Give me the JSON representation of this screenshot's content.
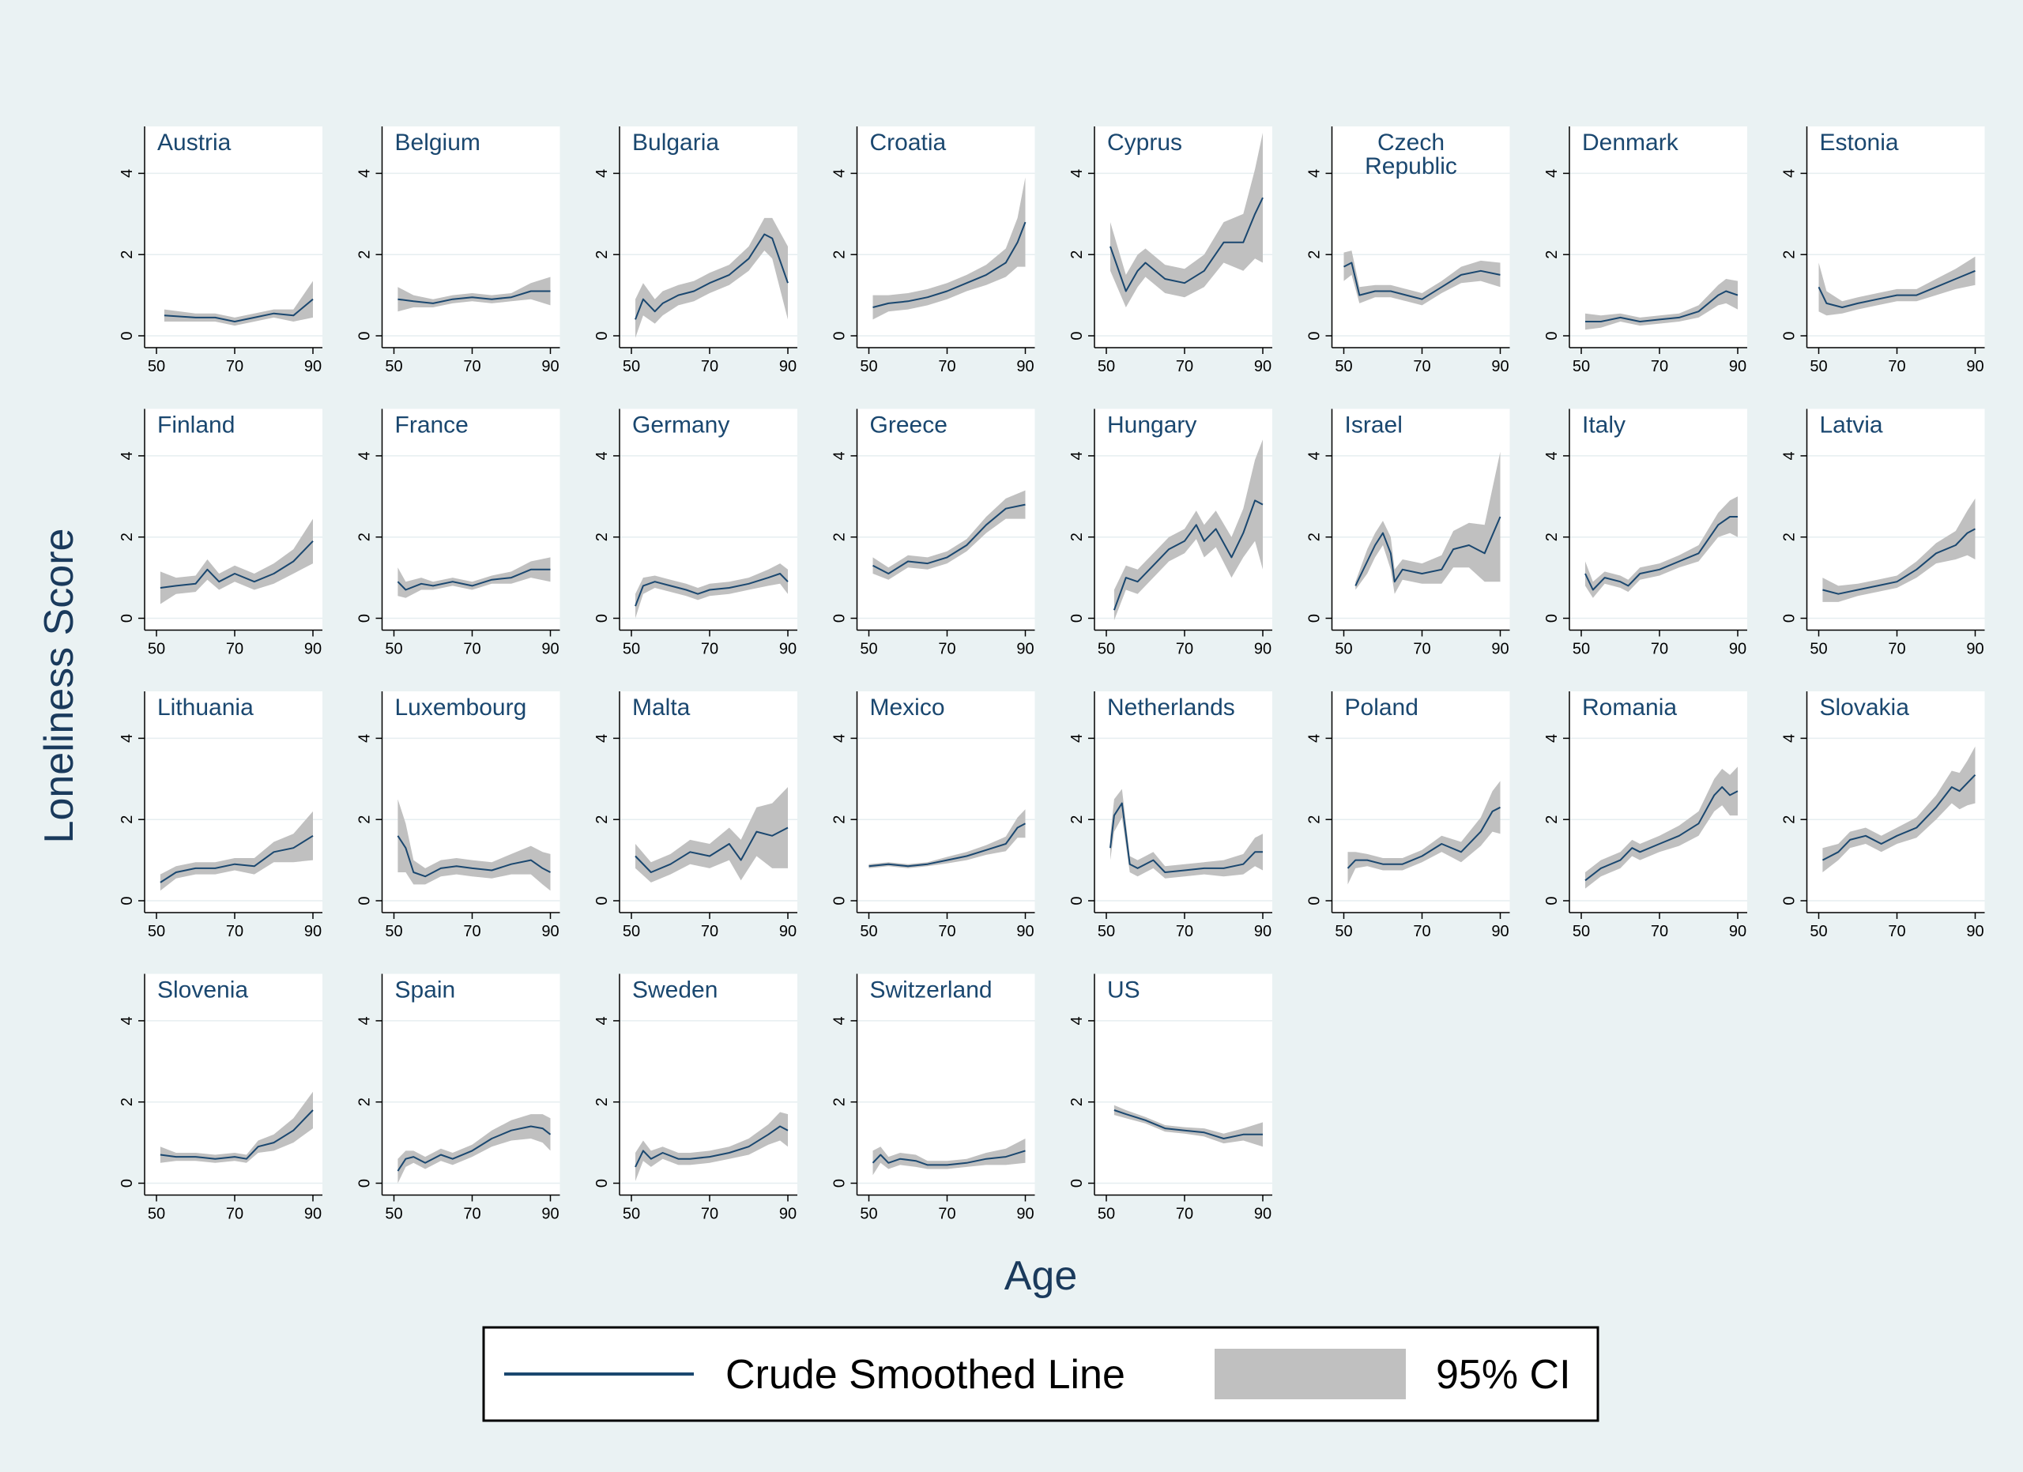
{
  "colors": {
    "background": "#eaf2f3",
    "plot_background": "#ffffff",
    "line": "#1a476f",
    "ci_band": "#c0c0c0",
    "gridline": "#e6eef0",
    "title_text": "#1a476f"
  },
  "chart_data": {
    "type": "line",
    "layout": "small multiples, 8 columns",
    "ylabel": "Loneliness Score",
    "xlabel": "Age",
    "xlim": [
      50,
      90
    ],
    "ylim": [
      0,
      5
    ],
    "xticks": [
      50,
      70,
      90
    ],
    "yticks": [
      0,
      2,
      4
    ],
    "grid": "horizontal",
    "legend": {
      "position": "bottom-center",
      "items": [
        {
          "label": "Crude Smoothed Line",
          "kind": "line"
        },
        {
          "label": "95% CI",
          "kind": "band"
        }
      ]
    },
    "panels": [
      {
        "title": [
          "Austria"
        ],
        "x": [
          52,
          60,
          65,
          70,
          75,
          80,
          85,
          90
        ],
        "y": [
          0.5,
          0.45,
          0.45,
          0.35,
          0.45,
          0.55,
          0.5,
          0.9
        ],
        "ci": [
          0.15,
          0.1,
          0.1,
          0.1,
          0.1,
          0.1,
          0.15,
          0.45
        ]
      },
      {
        "title": [
          "Belgium"
        ],
        "x": [
          51,
          55,
          60,
          65,
          70,
          75,
          80,
          85,
          90
        ],
        "y": [
          0.9,
          0.85,
          0.8,
          0.9,
          0.95,
          0.9,
          0.95,
          1.1,
          1.1
        ],
        "ci": [
          0.3,
          0.15,
          0.1,
          0.1,
          0.1,
          0.1,
          0.1,
          0.2,
          0.35
        ]
      },
      {
        "title": [
          "Bulgaria"
        ],
        "x": [
          51,
          53,
          56,
          58,
          62,
          66,
          70,
          75,
          80,
          84,
          86,
          90
        ],
        "y": [
          0.4,
          0.9,
          0.6,
          0.8,
          1.0,
          1.1,
          1.3,
          1.5,
          1.9,
          2.5,
          2.4,
          1.3
        ],
        "ci": [
          0.5,
          0.4,
          0.3,
          0.3,
          0.25,
          0.25,
          0.25,
          0.25,
          0.3,
          0.4,
          0.5,
          0.9
        ]
      },
      {
        "title": [
          "Croatia"
        ],
        "x": [
          51,
          55,
          60,
          65,
          70,
          75,
          80,
          85,
          88,
          90
        ],
        "y": [
          0.7,
          0.8,
          0.85,
          0.95,
          1.1,
          1.3,
          1.5,
          1.8,
          2.3,
          2.8
        ],
        "ci": [
          0.3,
          0.2,
          0.2,
          0.2,
          0.2,
          0.2,
          0.25,
          0.35,
          0.6,
          1.1
        ]
      },
      {
        "title": [
          "Cyprus"
        ],
        "x": [
          51,
          55,
          58,
          60,
          65,
          70,
          75,
          80,
          85,
          88,
          90
        ],
        "y": [
          2.2,
          1.1,
          1.6,
          1.8,
          1.4,
          1.3,
          1.6,
          2.3,
          2.3,
          3.0,
          3.4
        ],
        "ci": [
          0.6,
          0.4,
          0.4,
          0.35,
          0.35,
          0.35,
          0.4,
          0.5,
          0.7,
          1.1,
          1.6
        ]
      },
      {
        "title": [
          "Czech",
          "Republic"
        ],
        "x": [
          50,
          52,
          54,
          58,
          62,
          66,
          70,
          75,
          80,
          85,
          90
        ],
        "y": [
          1.7,
          1.8,
          1.0,
          1.1,
          1.1,
          1.0,
          0.9,
          1.2,
          1.5,
          1.6,
          1.5
        ],
        "ci": [
          0.35,
          0.3,
          0.2,
          0.15,
          0.15,
          0.15,
          0.15,
          0.15,
          0.2,
          0.25,
          0.3
        ]
      },
      {
        "title": [
          "Denmark"
        ],
        "x": [
          51,
          55,
          60,
          65,
          70,
          75,
          80,
          85,
          87,
          90
        ],
        "y": [
          0.35,
          0.35,
          0.45,
          0.35,
          0.4,
          0.45,
          0.6,
          1.0,
          1.1,
          1.0
        ],
        "ci": [
          0.2,
          0.15,
          0.1,
          0.1,
          0.1,
          0.1,
          0.15,
          0.25,
          0.3,
          0.35
        ]
      },
      {
        "title": [
          "Estonia"
        ],
        "x": [
          50,
          52,
          56,
          60,
          65,
          70,
          75,
          80,
          85,
          90
        ],
        "y": [
          1.2,
          0.8,
          0.7,
          0.8,
          0.9,
          1.0,
          1.0,
          1.2,
          1.4,
          1.6
        ],
        "ci": [
          0.6,
          0.3,
          0.15,
          0.15,
          0.15,
          0.15,
          0.15,
          0.2,
          0.25,
          0.35
        ]
      },
      {
        "title": [
          "Finland"
        ],
        "x": [
          51,
          55,
          60,
          63,
          66,
          70,
          75,
          80,
          85,
          90
        ],
        "y": [
          0.75,
          0.8,
          0.85,
          1.2,
          0.9,
          1.1,
          0.9,
          1.1,
          1.4,
          1.9
        ],
        "ci": [
          0.4,
          0.2,
          0.2,
          0.25,
          0.2,
          0.2,
          0.2,
          0.25,
          0.3,
          0.55
        ]
      },
      {
        "title": [
          "France"
        ],
        "x": [
          51,
          53,
          57,
          60,
          65,
          70,
          75,
          80,
          85,
          90
        ],
        "y": [
          0.9,
          0.7,
          0.85,
          0.8,
          0.9,
          0.8,
          0.95,
          1.0,
          1.2,
          1.2
        ],
        "ci": [
          0.35,
          0.2,
          0.15,
          0.1,
          0.1,
          0.1,
          0.1,
          0.15,
          0.2,
          0.3
        ]
      },
      {
        "title": [
          "Germany"
        ],
        "x": [
          51,
          53,
          56,
          60,
          64,
          67,
          70,
          75,
          80,
          85,
          88,
          90
        ],
        "y": [
          0.3,
          0.8,
          0.9,
          0.8,
          0.7,
          0.6,
          0.7,
          0.75,
          0.85,
          1.0,
          1.1,
          0.9
        ],
        "ci": [
          0.3,
          0.2,
          0.15,
          0.15,
          0.15,
          0.15,
          0.15,
          0.15,
          0.15,
          0.2,
          0.25,
          0.3
        ]
      },
      {
        "title": [
          "Greece"
        ],
        "x": [
          51,
          55,
          60,
          65,
          70,
          75,
          80,
          85,
          90
        ],
        "y": [
          1.3,
          1.1,
          1.4,
          1.35,
          1.5,
          1.8,
          2.3,
          2.7,
          2.8
        ],
        "ci": [
          0.2,
          0.15,
          0.15,
          0.15,
          0.15,
          0.15,
          0.2,
          0.25,
          0.35
        ]
      },
      {
        "title": [
          "Hungary"
        ],
        "x": [
          52,
          55,
          58,
          62,
          66,
          70,
          73,
          75,
          78,
          82,
          85,
          88,
          90
        ],
        "y": [
          0.2,
          1.0,
          0.9,
          1.3,
          1.7,
          1.9,
          2.3,
          1.9,
          2.2,
          1.5,
          2.1,
          2.9,
          2.8
        ],
        "ci": [
          0.5,
          0.3,
          0.3,
          0.3,
          0.3,
          0.3,
          0.35,
          0.4,
          0.45,
          0.5,
          0.6,
          1.0,
          1.6
        ]
      },
      {
        "title": [
          "Israel"
        ],
        "x": [
          53,
          56,
          58,
          60,
          62,
          63,
          65,
          70,
          75,
          78,
          82,
          86,
          90
        ],
        "y": [
          0.8,
          1.4,
          1.8,
          2.1,
          1.6,
          0.9,
          1.2,
          1.1,
          1.2,
          1.7,
          1.8,
          1.6,
          2.5
        ],
        "ci": [
          0.1,
          0.3,
          0.3,
          0.3,
          0.4,
          0.3,
          0.25,
          0.25,
          0.35,
          0.45,
          0.55,
          0.7,
          1.6
        ]
      },
      {
        "title": [
          "Italy"
        ],
        "x": [
          51,
          53,
          56,
          60,
          62,
          65,
          70,
          75,
          80,
          85,
          88,
          90
        ],
        "y": [
          1.1,
          0.7,
          1.0,
          0.9,
          0.8,
          1.1,
          1.2,
          1.4,
          1.6,
          2.3,
          2.5,
          2.5
        ],
        "ci": [
          0.3,
          0.2,
          0.15,
          0.15,
          0.15,
          0.15,
          0.15,
          0.15,
          0.2,
          0.3,
          0.4,
          0.5
        ]
      },
      {
        "title": [
          "Latvia"
        ],
        "x": [
          51,
          55,
          60,
          65,
          70,
          75,
          80,
          85,
          88,
          90
        ],
        "y": [
          0.7,
          0.6,
          0.7,
          0.8,
          0.9,
          1.2,
          1.6,
          1.8,
          2.1,
          2.2
        ],
        "ci": [
          0.3,
          0.2,
          0.15,
          0.15,
          0.15,
          0.2,
          0.25,
          0.35,
          0.55,
          0.75
        ]
      },
      {
        "title": [
          "Lithuania"
        ],
        "x": [
          51,
          55,
          60,
          65,
          70,
          75,
          80,
          85,
          90
        ],
        "y": [
          0.45,
          0.7,
          0.8,
          0.8,
          0.9,
          0.85,
          1.2,
          1.3,
          1.6
        ],
        "ci": [
          0.2,
          0.15,
          0.15,
          0.15,
          0.15,
          0.2,
          0.25,
          0.35,
          0.6
        ]
      },
      {
        "title": [
          "Luxembourg"
        ],
        "x": [
          51,
          53,
          55,
          58,
          62,
          66,
          70,
          75,
          80,
          85,
          88,
          90
        ],
        "y": [
          1.6,
          1.3,
          0.7,
          0.6,
          0.8,
          0.85,
          0.8,
          0.75,
          0.9,
          1.0,
          0.8,
          0.7
        ],
        "ci": [
          0.9,
          0.6,
          0.3,
          0.2,
          0.2,
          0.2,
          0.2,
          0.2,
          0.25,
          0.35,
          0.4,
          0.45
        ]
      },
      {
        "title": [
          "Malta"
        ],
        "x": [
          51,
          55,
          60,
          65,
          70,
          75,
          78,
          82,
          86,
          90
        ],
        "y": [
          1.1,
          0.7,
          0.9,
          1.2,
          1.1,
          1.4,
          1.0,
          1.7,
          1.6,
          1.8
        ],
        "ci": [
          0.3,
          0.25,
          0.25,
          0.3,
          0.3,
          0.4,
          0.5,
          0.6,
          0.8,
          1.0
        ]
      },
      {
        "title": [
          "Mexico"
        ],
        "x": [
          50,
          55,
          60,
          65,
          70,
          75,
          80,
          85,
          88,
          90
        ],
        "y": [
          0.85,
          0.9,
          0.85,
          0.9,
          1.0,
          1.1,
          1.25,
          1.4,
          1.8,
          1.9
        ],
        "ci": [
          0.05,
          0.05,
          0.05,
          0.05,
          0.08,
          0.1,
          0.12,
          0.18,
          0.25,
          0.35
        ]
      },
      {
        "title": [
          "Netherlands"
        ],
        "x": [
          51,
          52,
          54,
          56,
          58,
          60,
          62,
          65,
          70,
          75,
          80,
          85,
          88,
          90
        ],
        "y": [
          1.3,
          2.1,
          2.4,
          0.9,
          0.8,
          0.9,
          1.0,
          0.7,
          0.75,
          0.8,
          0.8,
          0.9,
          1.2,
          1.2
        ],
        "ci": [
          0.3,
          0.4,
          0.35,
          0.2,
          0.2,
          0.2,
          0.2,
          0.15,
          0.15,
          0.15,
          0.2,
          0.25,
          0.35,
          0.45
        ]
      },
      {
        "title": [
          "Poland"
        ],
        "x": [
          51,
          53,
          56,
          60,
          65,
          70,
          75,
          80,
          85,
          88,
          90
        ],
        "y": [
          0.8,
          1.0,
          1.0,
          0.9,
          0.9,
          1.1,
          1.4,
          1.2,
          1.7,
          2.2,
          2.3
        ],
        "ci": [
          0.4,
          0.2,
          0.15,
          0.15,
          0.15,
          0.15,
          0.2,
          0.25,
          0.35,
          0.5,
          0.65
        ]
      },
      {
        "title": [
          "Romania"
        ],
        "x": [
          51,
          55,
          60,
          63,
          65,
          70,
          75,
          80,
          84,
          86,
          88,
          90
        ],
        "y": [
          0.5,
          0.8,
          1.0,
          1.3,
          1.2,
          1.4,
          1.6,
          1.9,
          2.6,
          2.8,
          2.6,
          2.7
        ],
        "ci": [
          0.2,
          0.2,
          0.2,
          0.2,
          0.2,
          0.2,
          0.25,
          0.3,
          0.4,
          0.45,
          0.5,
          0.6
        ]
      },
      {
        "title": [
          "Slovakia"
        ],
        "x": [
          51,
          55,
          58,
          62,
          66,
          70,
          75,
          80,
          84,
          86,
          88,
          90
        ],
        "y": [
          1.0,
          1.2,
          1.5,
          1.6,
          1.4,
          1.6,
          1.8,
          2.3,
          2.8,
          2.7,
          2.9,
          3.1
        ],
        "ci": [
          0.3,
          0.2,
          0.2,
          0.2,
          0.2,
          0.2,
          0.25,
          0.3,
          0.4,
          0.45,
          0.55,
          0.7
        ]
      },
      {
        "title": [
          "Slovenia"
        ],
        "x": [
          51,
          55,
          60,
          65,
          70,
          73,
          76,
          80,
          85,
          90
        ],
        "y": [
          0.7,
          0.65,
          0.65,
          0.6,
          0.65,
          0.6,
          0.9,
          1.0,
          1.3,
          1.8
        ],
        "ci": [
          0.2,
          0.1,
          0.1,
          0.1,
          0.1,
          0.1,
          0.15,
          0.2,
          0.3,
          0.45
        ]
      },
      {
        "title": [
          "Spain"
        ],
        "x": [
          51,
          53,
          55,
          58,
          62,
          65,
          70,
          75,
          80,
          85,
          88,
          90
        ],
        "y": [
          0.3,
          0.6,
          0.65,
          0.5,
          0.7,
          0.6,
          0.8,
          1.1,
          1.3,
          1.4,
          1.35,
          1.2
        ],
        "ci": [
          0.3,
          0.2,
          0.15,
          0.15,
          0.15,
          0.15,
          0.15,
          0.2,
          0.25,
          0.3,
          0.35,
          0.4
        ]
      },
      {
        "title": [
          "Sweden"
        ],
        "x": [
          51,
          53,
          55,
          58,
          62,
          65,
          70,
          75,
          80,
          85,
          88,
          90
        ],
        "y": [
          0.4,
          0.8,
          0.6,
          0.75,
          0.6,
          0.6,
          0.65,
          0.75,
          0.9,
          1.2,
          1.4,
          1.3
        ],
        "ci": [
          0.35,
          0.25,
          0.2,
          0.15,
          0.15,
          0.15,
          0.15,
          0.15,
          0.2,
          0.25,
          0.35,
          0.4
        ]
      },
      {
        "title": [
          "Switzerland"
        ],
        "x": [
          51,
          53,
          55,
          58,
          62,
          65,
          70,
          75,
          80,
          85,
          90
        ],
        "y": [
          0.5,
          0.7,
          0.5,
          0.6,
          0.55,
          0.45,
          0.45,
          0.5,
          0.6,
          0.65,
          0.8
        ],
        "ci": [
          0.3,
          0.2,
          0.15,
          0.15,
          0.15,
          0.1,
          0.1,
          0.1,
          0.15,
          0.2,
          0.3
        ]
      },
      {
        "title": [
          "US"
        ],
        "x": [
          52,
          55,
          60,
          65,
          70,
          75,
          80,
          85,
          90
        ],
        "y": [
          1.8,
          1.7,
          1.55,
          1.35,
          1.3,
          1.25,
          1.1,
          1.2,
          1.2
        ],
        "ci": [
          0.12,
          0.1,
          0.08,
          0.08,
          0.08,
          0.1,
          0.12,
          0.15,
          0.3
        ]
      }
    ]
  }
}
